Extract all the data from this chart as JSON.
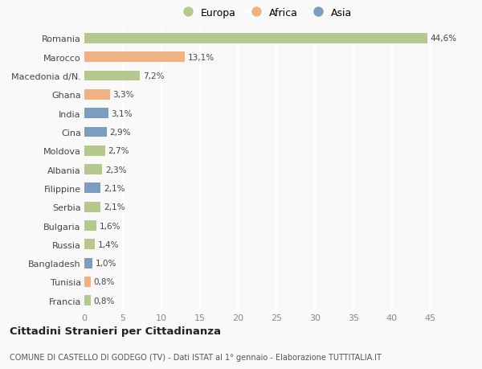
{
  "countries": [
    "Romania",
    "Marocco",
    "Macedonia d/N.",
    "Ghana",
    "India",
    "Cina",
    "Moldova",
    "Albania",
    "Filippine",
    "Serbia",
    "Bulgaria",
    "Russia",
    "Bangladesh",
    "Tunisia",
    "Francia"
  ],
  "values": [
    44.6,
    13.1,
    7.2,
    3.3,
    3.1,
    2.9,
    2.7,
    2.3,
    2.1,
    2.1,
    1.6,
    1.4,
    1.0,
    0.8,
    0.8
  ],
  "labels": [
    "44,6%",
    "13,1%",
    "7,2%",
    "3,3%",
    "3,1%",
    "2,9%",
    "2,7%",
    "2,3%",
    "2,1%",
    "2,1%",
    "1,6%",
    "1,4%",
    "1,0%",
    "0,8%",
    "0,8%"
  ],
  "continents": [
    "Europa",
    "Africa",
    "Europa",
    "Africa",
    "Asia",
    "Asia",
    "Europa",
    "Europa",
    "Asia",
    "Europa",
    "Europa",
    "Europa",
    "Asia",
    "Africa",
    "Europa"
  ],
  "colors": {
    "Europa": "#b5c98e",
    "Africa": "#f2b180",
    "Asia": "#7b9ec0"
  },
  "title": "Cittadini Stranieri per Cittadinanza",
  "subtitle": "COMUNE DI CASTELLO DI GODEGO (TV) - Dati ISTAT al 1° gennaio - Elaborazione TUTTITALIA.IT",
  "xlim": [
    0,
    47
  ],
  "xticks": [
    0,
    5,
    10,
    15,
    20,
    25,
    30,
    35,
    40,
    45
  ],
  "background_color": "#f9f9f9",
  "grid_color": "#ffffff",
  "bar_height": 0.55
}
